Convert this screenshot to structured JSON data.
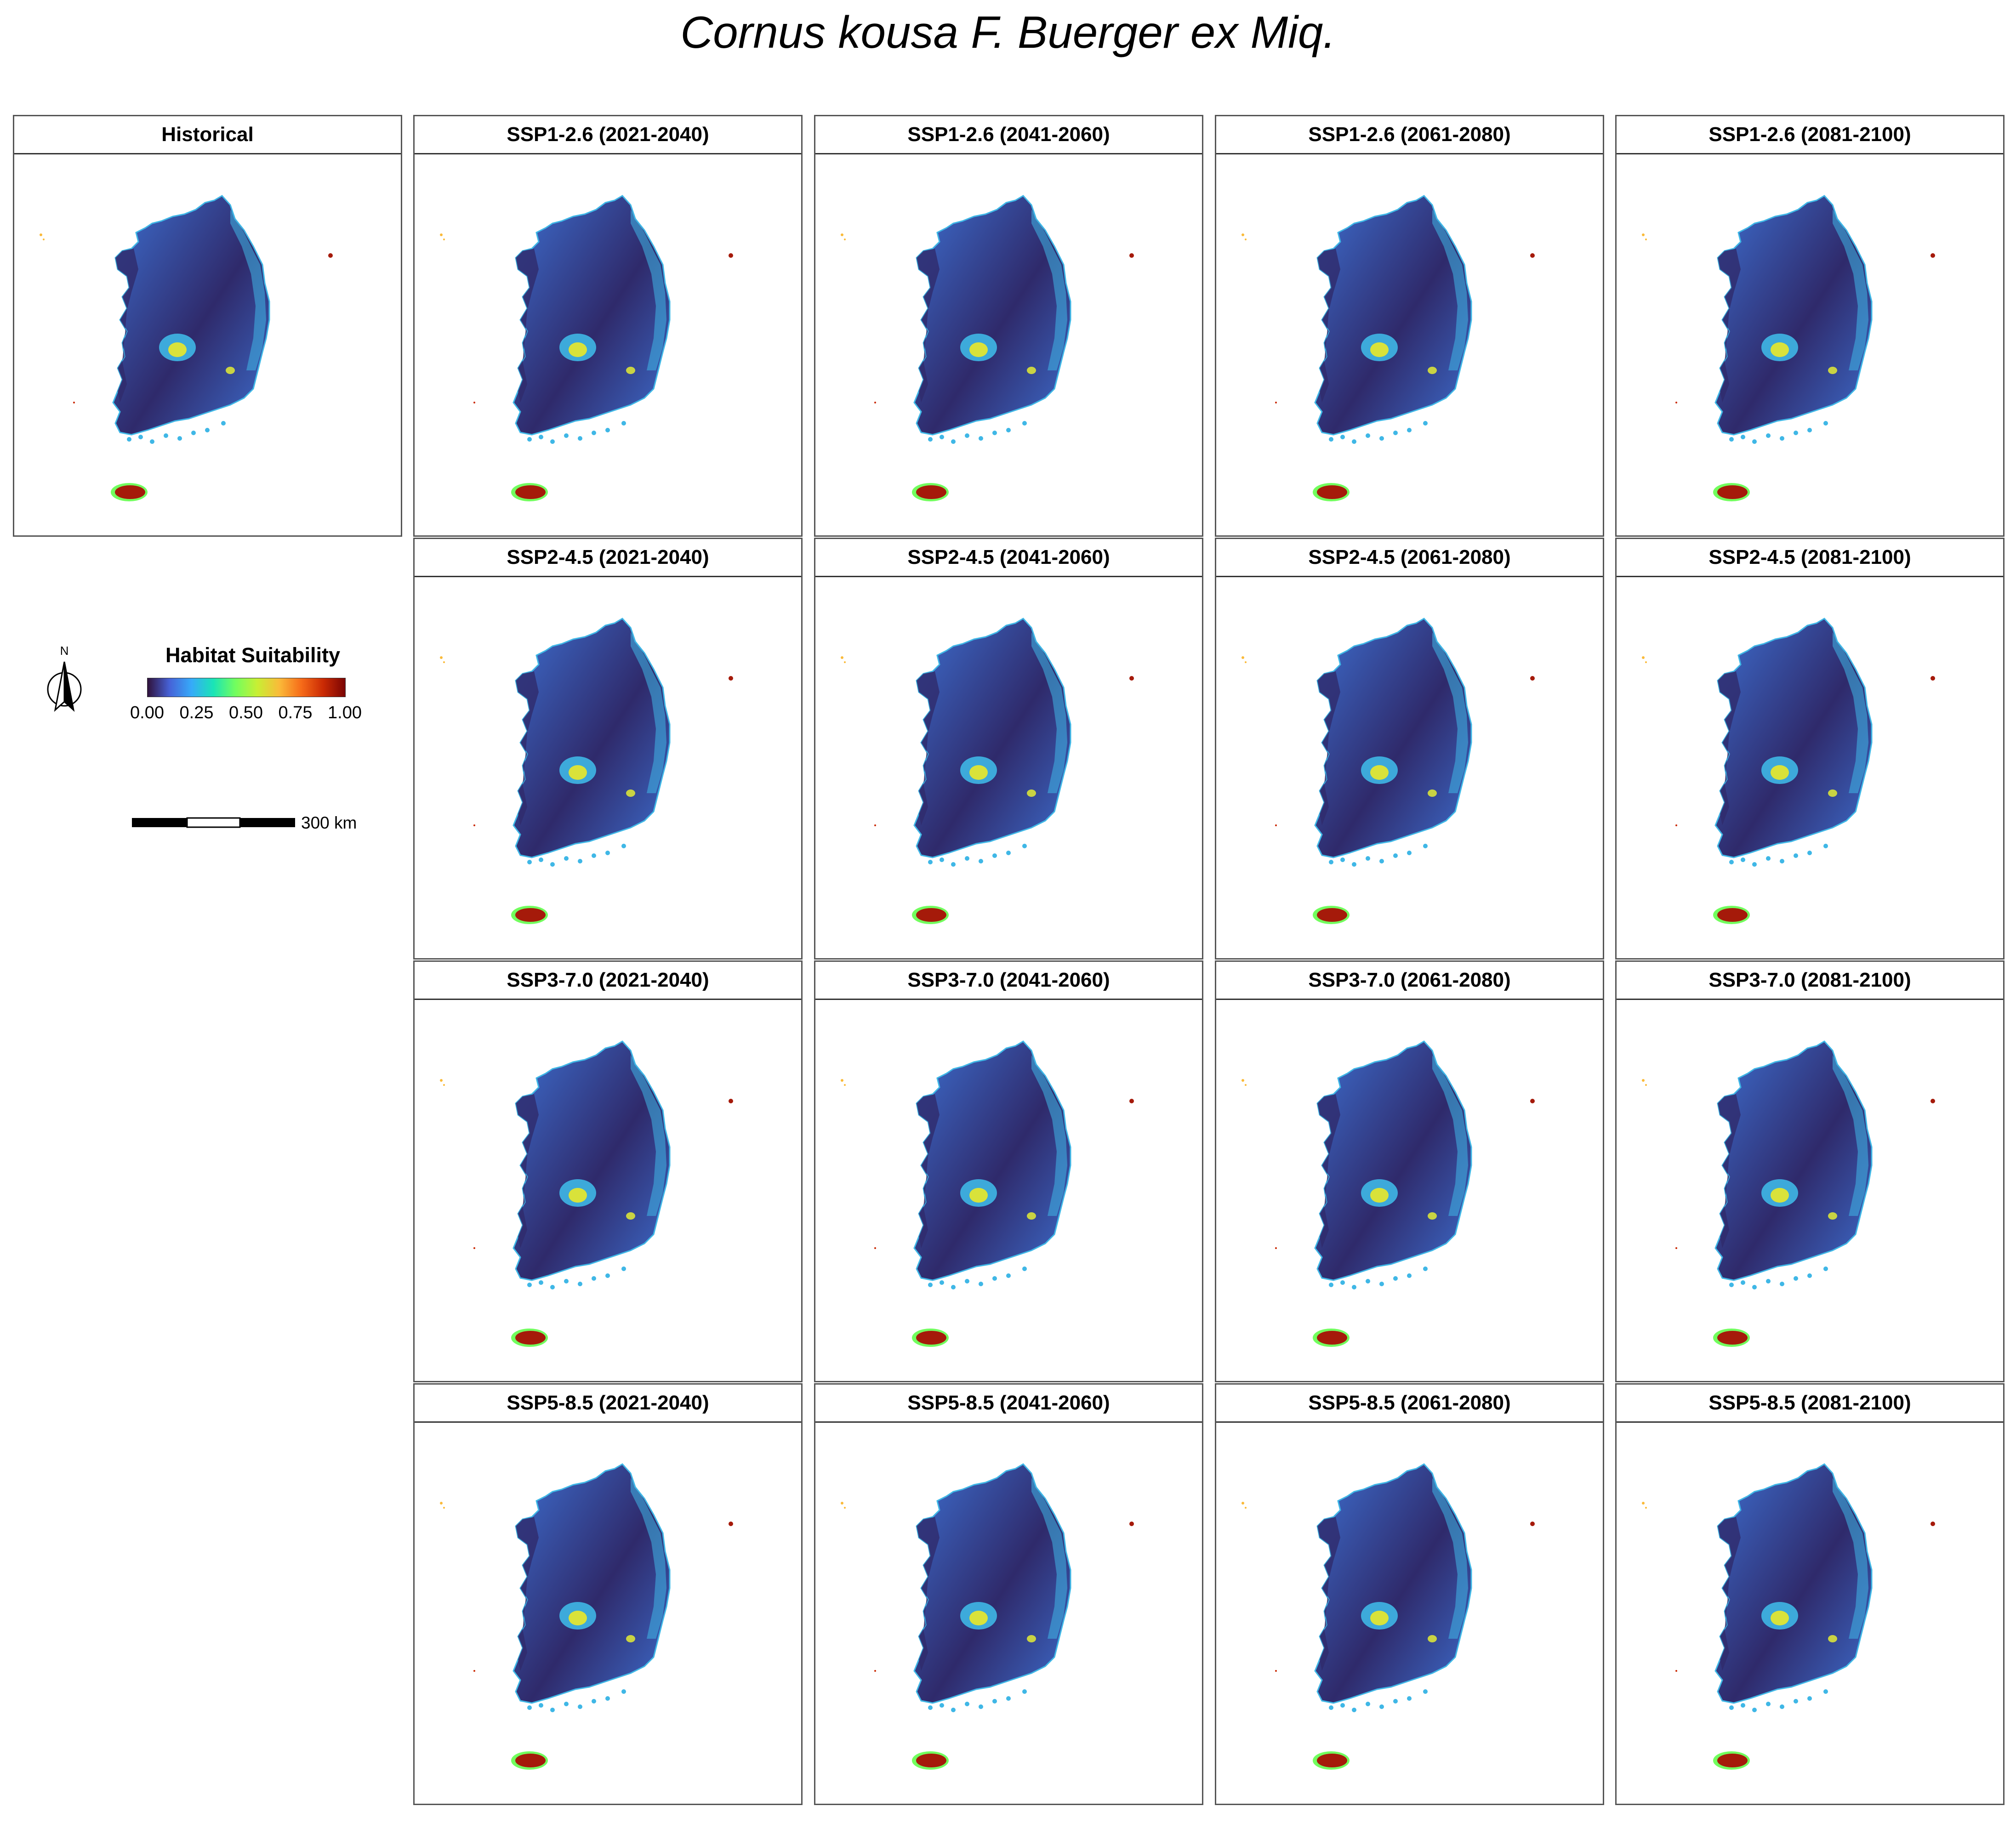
{
  "title": "Cornus kousa F. Buerger ex Miq.",
  "panels": [
    {
      "label": "Historical",
      "row": 0,
      "col": 0
    },
    {
      "label": "SSP1-2.6 (2021-2040)",
      "row": 0,
      "col": 1
    },
    {
      "label": "SSP1-2.6 (2041-2060)",
      "row": 0,
      "col": 2
    },
    {
      "label": "SSP1-2.6 (2061-2080)",
      "row": 0,
      "col": 3
    },
    {
      "label": "SSP1-2.6 (2081-2100)",
      "row": 0,
      "col": 4
    },
    {
      "label": "SSP2-4.5 (2021-2040)",
      "row": 1,
      "col": 1
    },
    {
      "label": "SSP2-4.5 (2041-2060)",
      "row": 1,
      "col": 2
    },
    {
      "label": "SSP2-4.5 (2061-2080)",
      "row": 1,
      "col": 3
    },
    {
      "label": "SSP2-4.5 (2081-2100)",
      "row": 1,
      "col": 4
    },
    {
      "label": "SSP3-7.0 (2021-2040)",
      "row": 2,
      "col": 1
    },
    {
      "label": "SSP3-7.0 (2041-2060)",
      "row": 2,
      "col": 2
    },
    {
      "label": "SSP3-7.0 (2061-2080)",
      "row": 2,
      "col": 3
    },
    {
      "label": "SSP3-7.0 (2081-2100)",
      "row": 2,
      "col": 4
    },
    {
      "label": "SSP5-8.5 (2021-2040)",
      "row": 3,
      "col": 1
    },
    {
      "label": "SSP5-8.5 (2041-2060)",
      "row": 3,
      "col": 2
    },
    {
      "label": "SSP5-8.5 (2061-2080)",
      "row": 3,
      "col": 3
    },
    {
      "label": "SSP5-8.5 (2081-2100)",
      "row": 3,
      "col": 4
    }
  ],
  "legend": {
    "title": "Habitat Suitability",
    "ticks": [
      "0.00",
      "0.25",
      "0.50",
      "0.75",
      "1.00"
    ],
    "range": [
      0,
      1
    ],
    "colors": [
      "#30123b",
      "#4662d7",
      "#36aaf9",
      "#1ae4b6",
      "#72fe5e",
      "#c8ef34",
      "#faba39",
      "#f66b19",
      "#ca2a04",
      "#7a0403"
    ]
  },
  "north_arrow": {
    "label": "N"
  },
  "scale_bar": {
    "label": "300 km"
  },
  "colors": {
    "land_low": "#2f2a6b",
    "land_mid": "#3d6fd0",
    "land_high": "#3fb7e6",
    "hotspot": "#d9e23a",
    "jeju": "#a51a0a"
  }
}
